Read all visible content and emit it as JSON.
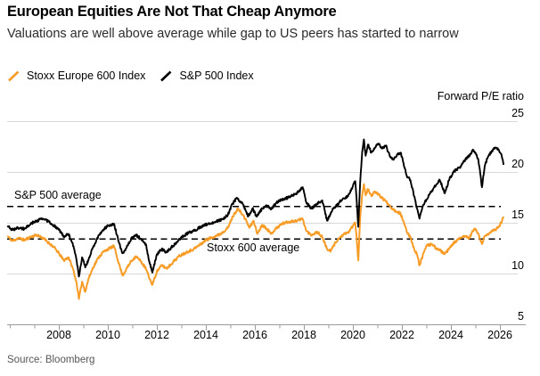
{
  "header": {
    "title": "European Equities Are Not That Cheap Anymore",
    "subtitle": "Valuations are well above average while gap to US peers has started to narrow"
  },
  "legend": [
    {
      "label": "Stoxx Europe 600 Index",
      "color": "#F79C26"
    },
    {
      "label": "S&P 500 Index",
      "color": "#000000"
    }
  ],
  "chart": {
    "axis_title": "Forward P/E ratio"
  },
  "footer": {
    "source": "Source: Bloomberg"
  },
  "colors": {
    "grid": "#d8d8d8",
    "axis": "#9b9b9b",
    "dashed": "#000000",
    "background": "#ffffff"
  },
  "chart_data": {
    "type": "line",
    "title": "European Equities Are Not That Cheap Anymore",
    "subtitle": "Valuations are well above average while gap to US peers has started to narrow",
    "xlabel": "",
    "ylabel": "Forward P/E ratio",
    "xlim": [
      2005.9,
      2026.7
    ],
    "ylim": [
      5,
      25
    ],
    "x_ticks": [
      2008,
      2010,
      2012,
      2014,
      2016,
      2018,
      2020,
      2022,
      2024,
      2026
    ],
    "y_ticks": [
      25,
      20,
      15,
      10,
      5
    ],
    "grid": "horizontal",
    "legend_position": "top-left",
    "annotations": [
      {
        "label": "S&P 500 average",
        "value": 16.6,
        "style": "dashed"
      },
      {
        "label": "Stoxx 600 average",
        "value": 13.4,
        "style": "dashed"
      }
    ],
    "series": [
      {
        "name": "Stoxx Europe 600 Index",
        "color": "#F79C26",
        "points": [
          [
            2005.9,
            13.7
          ],
          [
            2006.1,
            13.2
          ],
          [
            2006.35,
            13.5
          ],
          [
            2006.6,
            13.3
          ],
          [
            2006.85,
            13.6
          ],
          [
            2007.1,
            13.8
          ],
          [
            2007.35,
            13.5
          ],
          [
            2007.6,
            13.0
          ],
          [
            2007.8,
            12.6
          ],
          [
            2008.0,
            12.0
          ],
          [
            2008.2,
            11.3
          ],
          [
            2008.4,
            11.6
          ],
          [
            2008.6,
            10.3
          ],
          [
            2008.73,
            9.0
          ],
          [
            2008.82,
            7.5
          ],
          [
            2008.95,
            9.2
          ],
          [
            2009.08,
            8.2
          ],
          [
            2009.2,
            9.4
          ],
          [
            2009.4,
            10.6
          ],
          [
            2009.6,
            11.5
          ],
          [
            2009.8,
            12.1
          ],
          [
            2010.0,
            12.4
          ],
          [
            2010.25,
            12.7
          ],
          [
            2010.45,
            11.0
          ],
          [
            2010.6,
            9.8
          ],
          [
            2010.75,
            10.4
          ],
          [
            2010.95,
            11.2
          ],
          [
            2011.15,
            11.7
          ],
          [
            2011.35,
            11.2
          ],
          [
            2011.55,
            10.5
          ],
          [
            2011.72,
            9.4
          ],
          [
            2011.82,
            8.9
          ],
          [
            2012.0,
            10.2
          ],
          [
            2012.2,
            10.8
          ],
          [
            2012.4,
            10.5
          ],
          [
            2012.65,
            11.1
          ],
          [
            2012.9,
            11.7
          ],
          [
            2013.2,
            12.1
          ],
          [
            2013.5,
            12.4
          ],
          [
            2013.8,
            12.9
          ],
          [
            2014.0,
            13.3
          ],
          [
            2014.3,
            13.6
          ],
          [
            2014.6,
            13.9
          ],
          [
            2014.9,
            14.5
          ],
          [
            2015.1,
            15.6
          ],
          [
            2015.3,
            16.4
          ],
          [
            2015.5,
            15.8
          ],
          [
            2015.65,
            15.2
          ],
          [
            2015.78,
            14.5
          ],
          [
            2015.95,
            15.2
          ],
          [
            2016.1,
            13.9
          ],
          [
            2016.3,
            14.8
          ],
          [
            2016.5,
            14.4
          ],
          [
            2016.65,
            13.9
          ],
          [
            2016.85,
            14.4
          ],
          [
            2017.1,
            14.9
          ],
          [
            2017.4,
            15.1
          ],
          [
            2017.7,
            15.2
          ],
          [
            2017.95,
            15.4
          ],
          [
            2018.1,
            14.2
          ],
          [
            2018.3,
            13.8
          ],
          [
            2018.55,
            14.1
          ],
          [
            2018.75,
            13.6
          ],
          [
            2018.95,
            12.4
          ],
          [
            2019.1,
            12.2
          ],
          [
            2019.3,
            13.1
          ],
          [
            2019.45,
            13.5
          ],
          [
            2019.6,
            13.8
          ],
          [
            2019.8,
            14.0
          ],
          [
            2020.0,
            14.7
          ],
          [
            2020.1,
            15.0
          ],
          [
            2020.16,
            13.2
          ],
          [
            2020.22,
            11.3
          ],
          [
            2020.3,
            15.5
          ],
          [
            2020.38,
            17.8
          ],
          [
            2020.45,
            18.8
          ],
          [
            2020.52,
            17.7
          ],
          [
            2020.62,
            18.3
          ],
          [
            2020.75,
            17.7
          ],
          [
            2020.9,
            18.0
          ],
          [
            2021.05,
            17.8
          ],
          [
            2021.2,
            17.4
          ],
          [
            2021.35,
            17.1
          ],
          [
            2021.5,
            16.7
          ],
          [
            2021.65,
            16.3
          ],
          [
            2021.8,
            16.1
          ],
          [
            2021.95,
            15.9
          ],
          [
            2022.05,
            15.2
          ],
          [
            2022.2,
            14.1
          ],
          [
            2022.35,
            13.6
          ],
          [
            2022.5,
            12.4
          ],
          [
            2022.62,
            11.9
          ],
          [
            2022.72,
            10.8
          ],
          [
            2022.85,
            11.8
          ],
          [
            2023.0,
            12.7
          ],
          [
            2023.2,
            12.9
          ],
          [
            2023.4,
            12.5
          ],
          [
            2023.55,
            12.3
          ],
          [
            2023.75,
            11.9
          ],
          [
            2023.95,
            12.5
          ],
          [
            2024.15,
            13.1
          ],
          [
            2024.35,
            13.4
          ],
          [
            2024.55,
            13.7
          ],
          [
            2024.75,
            13.5
          ],
          [
            2024.9,
            14.2
          ],
          [
            2025.0,
            14.4
          ],
          [
            2025.12,
            13.9
          ],
          [
            2025.2,
            13.3
          ],
          [
            2025.27,
            12.9
          ],
          [
            2025.38,
            13.7
          ],
          [
            2025.5,
            13.9
          ],
          [
            2025.65,
            14.1
          ],
          [
            2025.8,
            14.3
          ],
          [
            2025.95,
            14.6
          ],
          [
            2026.05,
            15.0
          ],
          [
            2026.15,
            15.6
          ]
        ]
      },
      {
        "name": "S&P 500 Index",
        "color": "#000000",
        "points": [
          [
            2005.9,
            14.7
          ],
          [
            2006.1,
            14.3
          ],
          [
            2006.35,
            14.5
          ],
          [
            2006.6,
            14.4
          ],
          [
            2006.85,
            14.9
          ],
          [
            2007.1,
            15.2
          ],
          [
            2007.35,
            15.4
          ],
          [
            2007.6,
            15.1
          ],
          [
            2007.8,
            14.7
          ],
          [
            2008.0,
            14.4
          ],
          [
            2008.2,
            13.6
          ],
          [
            2008.4,
            13.9
          ],
          [
            2008.6,
            12.7
          ],
          [
            2008.73,
            11.2
          ],
          [
            2008.82,
            9.7
          ],
          [
            2008.95,
            11.6
          ],
          [
            2009.08,
            10.6
          ],
          [
            2009.2,
            11.3
          ],
          [
            2009.4,
            12.6
          ],
          [
            2009.6,
            13.6
          ],
          [
            2009.8,
            14.3
          ],
          [
            2010.0,
            14.7
          ],
          [
            2010.25,
            14.9
          ],
          [
            2010.45,
            13.1
          ],
          [
            2010.6,
            12.0
          ],
          [
            2010.75,
            12.5
          ],
          [
            2010.95,
            13.4
          ],
          [
            2011.15,
            13.8
          ],
          [
            2011.35,
            13.4
          ],
          [
            2011.55,
            12.9
          ],
          [
            2011.72,
            10.9
          ],
          [
            2011.82,
            10.1
          ],
          [
            2012.0,
            11.9
          ],
          [
            2012.2,
            12.4
          ],
          [
            2012.4,
            12.1
          ],
          [
            2012.65,
            12.7
          ],
          [
            2012.9,
            13.3
          ],
          [
            2013.2,
            13.9
          ],
          [
            2013.5,
            14.2
          ],
          [
            2013.8,
            14.6
          ],
          [
            2014.1,
            14.9
          ],
          [
            2014.4,
            15.1
          ],
          [
            2014.7,
            15.4
          ],
          [
            2014.9,
            15.8
          ],
          [
            2015.1,
            16.9
          ],
          [
            2015.25,
            17.4
          ],
          [
            2015.45,
            17.0
          ],
          [
            2015.6,
            16.4
          ],
          [
            2015.72,
            15.6
          ],
          [
            2015.9,
            16.4
          ],
          [
            2016.08,
            15.6
          ],
          [
            2016.3,
            16.4
          ],
          [
            2016.5,
            16.7
          ],
          [
            2016.65,
            16.3
          ],
          [
            2016.85,
            16.9
          ],
          [
            2017.1,
            17.3
          ],
          [
            2017.4,
            17.5
          ],
          [
            2017.7,
            17.9
          ],
          [
            2017.95,
            18.5
          ],
          [
            2018.1,
            17.0
          ],
          [
            2018.3,
            16.4
          ],
          [
            2018.55,
            16.9
          ],
          [
            2018.75,
            17.2
          ],
          [
            2018.95,
            15.2
          ],
          [
            2019.2,
            16.4
          ],
          [
            2019.45,
            17.0
          ],
          [
            2019.6,
            17.4
          ],
          [
            2019.8,
            17.6
          ],
          [
            2020.0,
            18.6
          ],
          [
            2020.1,
            19.1
          ],
          [
            2020.16,
            17.0
          ],
          [
            2020.22,
            14.6
          ],
          [
            2020.3,
            19.0
          ],
          [
            2020.38,
            22.0
          ],
          [
            2020.45,
            23.2
          ],
          [
            2020.52,
            21.6
          ],
          [
            2020.62,
            22.7
          ],
          [
            2020.75,
            21.9
          ],
          [
            2020.9,
            22.4
          ],
          [
            2021.05,
            22.8
          ],
          [
            2021.2,
            22.3
          ],
          [
            2021.35,
            22.6
          ],
          [
            2021.5,
            21.6
          ],
          [
            2021.65,
            21.2
          ],
          [
            2021.8,
            21.7
          ],
          [
            2021.95,
            21.9
          ],
          [
            2022.05,
            21.0
          ],
          [
            2022.2,
            19.6
          ],
          [
            2022.35,
            19.2
          ],
          [
            2022.5,
            17.6
          ],
          [
            2022.62,
            16.4
          ],
          [
            2022.72,
            15.4
          ],
          [
            2022.85,
            16.6
          ],
          [
            2023.0,
            17.3
          ],
          [
            2023.2,
            18.1
          ],
          [
            2023.4,
            18.7
          ],
          [
            2023.55,
            19.2
          ],
          [
            2023.75,
            17.9
          ],
          [
            2023.95,
            19.4
          ],
          [
            2024.15,
            20.1
          ],
          [
            2024.35,
            20.4
          ],
          [
            2024.55,
            21.1
          ],
          [
            2024.75,
            21.6
          ],
          [
            2024.9,
            22.2
          ],
          [
            2025.0,
            21.9
          ],
          [
            2025.12,
            21.2
          ],
          [
            2025.2,
            19.8
          ],
          [
            2025.27,
            18.5
          ],
          [
            2025.38,
            20.6
          ],
          [
            2025.5,
            21.4
          ],
          [
            2025.65,
            22.0
          ],
          [
            2025.8,
            22.4
          ],
          [
            2025.95,
            22.2
          ],
          [
            2026.05,
            21.8
          ],
          [
            2026.15,
            20.7
          ]
        ]
      }
    ]
  }
}
